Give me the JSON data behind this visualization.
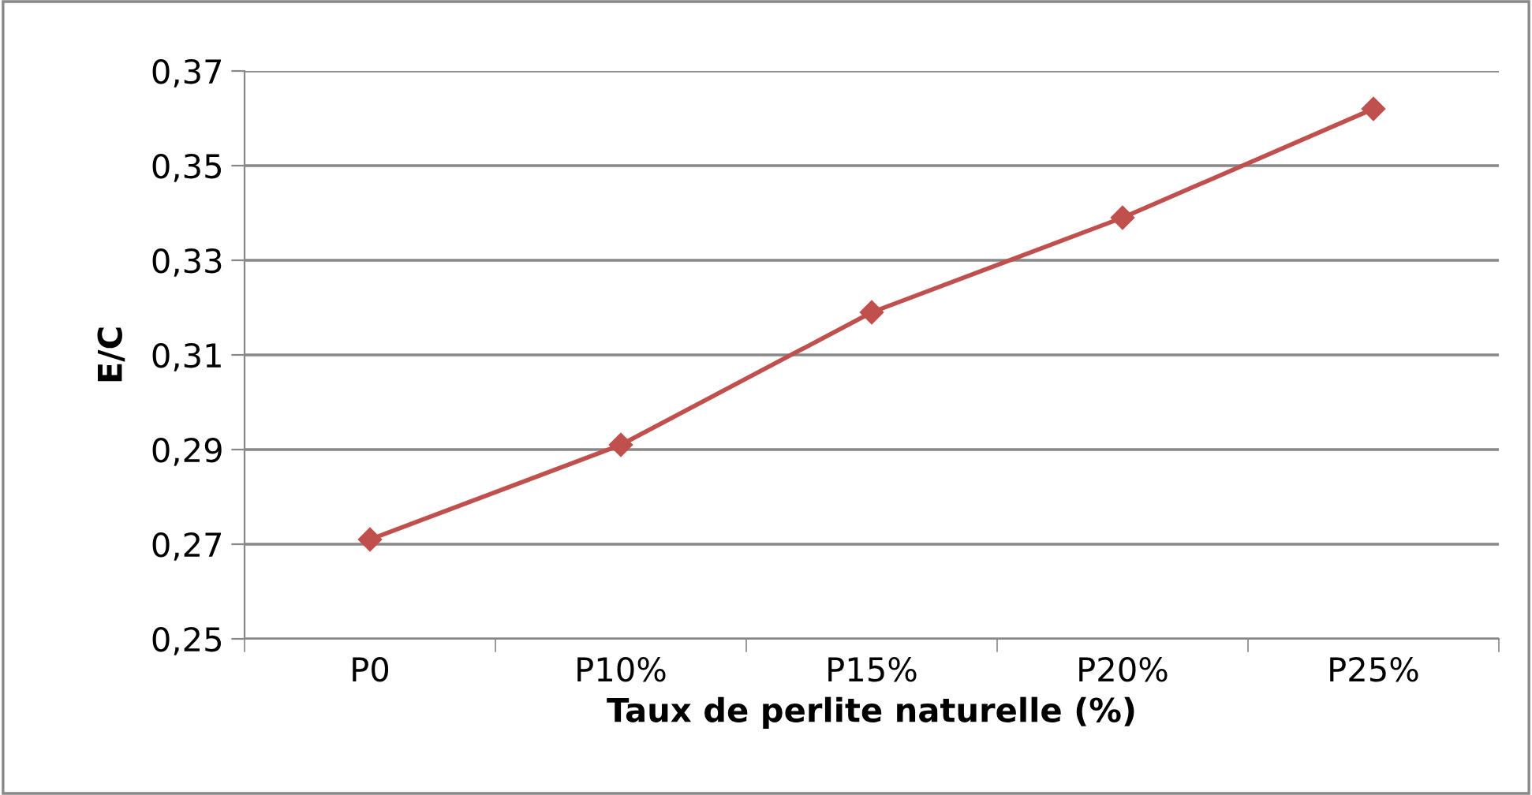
{
  "chart_data": {
    "type": "line",
    "xlabel": "Taux de perlite naturelle (%)",
    "ylabel": "E/C",
    "categories": [
      "P0",
      "P10%",
      "P15%",
      "P20%",
      "P25%"
    ],
    "series": [
      {
        "color": "#c0504d",
        "values": [
          0.271,
          0.291,
          0.319,
          0.339,
          0.362
        ]
      }
    ],
    "ylim": [
      0.25,
      0.37
    ],
    "yticks": [
      {
        "value": 0.25,
        "label": "0,25"
      },
      {
        "value": 0.27,
        "label": "0,27"
      },
      {
        "value": 0.29,
        "label": "0,29"
      },
      {
        "value": 0.31,
        "label": "0,31"
      },
      {
        "value": 0.33,
        "label": "0,33"
      },
      {
        "value": 0.35,
        "label": "0,35"
      },
      {
        "value": 0.37,
        "label": "0,37"
      }
    ],
    "grid": "y",
    "marker": "diamond",
    "line_style": "solid",
    "legend": false
  }
}
